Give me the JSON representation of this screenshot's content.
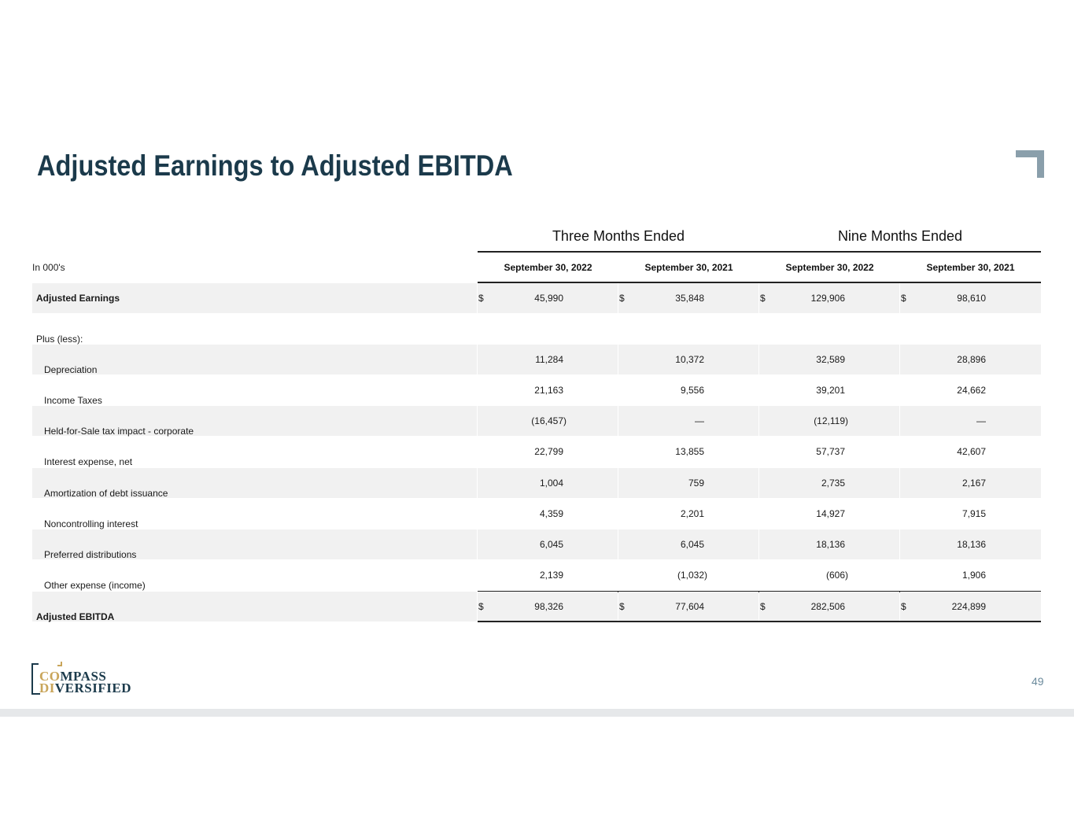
{
  "title": "Adjusted Earnings to Adjusted EBITDA",
  "groups": [
    "Three Months Ended",
    "Nine Months Ended"
  ],
  "units_label": "In 000's",
  "columns": [
    "September 30, 2022",
    "September 30, 2021",
    "September 30, 2022",
    "September 30, 2021"
  ],
  "plus_less_label": "Plus (less):",
  "rows": [
    {
      "label": "Adjusted Earnings",
      "values": [
        "45,990",
        "35,848",
        "129,906",
        "98,610"
      ],
      "dollar": "$"
    },
    {
      "label": "Depreciation",
      "values": [
        "11,284",
        "10,372",
        "32,589",
        "28,896"
      ]
    },
    {
      "label": "Income Taxes",
      "values": [
        "21,163",
        "9,556",
        "39,201",
        "24,662"
      ]
    },
    {
      "label": "Held-for-Sale tax impact - corporate",
      "values": [
        "(16,457)",
        "—",
        "(12,119)",
        "—"
      ]
    },
    {
      "label": "Interest expense, net",
      "values": [
        "22,799",
        "13,855",
        "57,737",
        "42,607"
      ]
    },
    {
      "label": "Amortization of debt issuance",
      "values": [
        "1,004",
        "759",
        "2,735",
        "2,167"
      ]
    },
    {
      "label": "Noncontrolling interest",
      "values": [
        "4,359",
        "2,201",
        "14,927",
        "7,915"
      ]
    },
    {
      "label": "Preferred distributions",
      "values": [
        "6,045",
        "6,045",
        "18,136",
        "18,136"
      ]
    },
    {
      "label": "Other expense (income)",
      "values": [
        "2,139",
        "(1,032)",
        "(606)",
        "1,906"
      ]
    },
    {
      "label": "Adjusted EBITDA",
      "values": [
        "98,326",
        "77,604",
        "282,506",
        "224,899"
      ],
      "dollar": "$"
    }
  ],
  "logo": {
    "line1_a": "CO",
    "line1_b": "MPASS",
    "line2_a": "DI",
    "line2_b": "VERSIFIED"
  },
  "page_number": "49",
  "colors": {
    "title": "#1b3a4b",
    "gold": "#c9a55a",
    "shade": "#f1f1f1",
    "corner": "#8a9fab"
  }
}
